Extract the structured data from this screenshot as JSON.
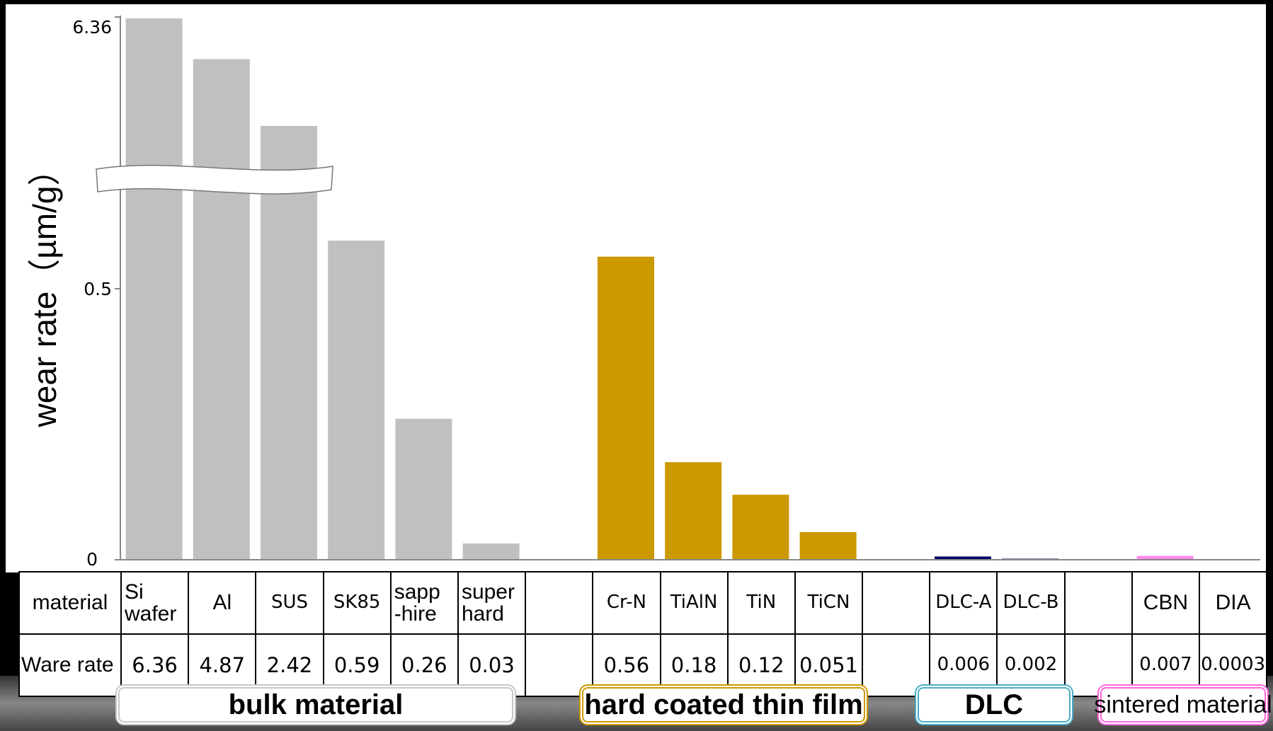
{
  "chart_data": {
    "type": "bar",
    "title": "",
    "xlabel": "",
    "ylabel": "wear rate（µm/g）",
    "y_ticks": [
      "6.36",
      "0.5",
      "0"
    ],
    "broken_axis": true,
    "grid": false,
    "row_header_material": "material",
    "row_header_rate": "Ware rate",
    "columns": [
      {
        "label": "Si wafer",
        "value": 6.36,
        "text": "6.36",
        "group": "bulk material"
      },
      {
        "label": "Al",
        "value": 4.87,
        "text": "4.87",
        "group": "bulk material"
      },
      {
        "label": "SUS",
        "value": 2.42,
        "text": "2.42",
        "group": "bulk material"
      },
      {
        "label": "SK85",
        "value": 0.59,
        "text": "0.59",
        "group": "bulk material"
      },
      {
        "label": "sapp -hire",
        "value": 0.26,
        "text": "0.26",
        "group": "bulk material"
      },
      {
        "label": "super hard",
        "value": 0.03,
        "text": "0.03",
        "group": "bulk material"
      },
      {
        "label": "",
        "value": null,
        "text": "",
        "group": ""
      },
      {
        "label": "Cr-N",
        "value": 0.56,
        "text": "0.56",
        "group": "hard coated thin film"
      },
      {
        "label": "TiAlN",
        "value": 0.18,
        "text": "0.18",
        "group": "hard coated thin film"
      },
      {
        "label": "TiN",
        "value": 0.12,
        "text": "0.12",
        "group": "hard coated thin film"
      },
      {
        "label": "TiCN",
        "value": 0.051,
        "text": "0.051",
        "group": "hard coated thin film"
      },
      {
        "label": "",
        "value": null,
        "text": "",
        "group": ""
      },
      {
        "label": "DLC-A",
        "value": 0.006,
        "text": "0.006",
        "group": "DLC"
      },
      {
        "label": "DLC-B",
        "value": 0.002,
        "text": "0.002",
        "group": "DLC"
      },
      {
        "label": "",
        "value": null,
        "text": "",
        "group": ""
      },
      {
        "label": "CBN",
        "value": 0.007,
        "text": "0.007",
        "group": "sintered material"
      },
      {
        "label": "DIA",
        "value": 0.0003,
        "text": "0.0003",
        "group": "sintered material"
      }
    ],
    "groups": [
      {
        "name": "bulk material",
        "color": "#c0c0c0",
        "border": "#c8c8c8"
      },
      {
        "name": "hard coated thin film",
        "color": "#cc9900",
        "border": "#cc9900"
      },
      {
        "name": "DLC",
        "color": "#000066",
        "border": "#4bacc6"
      },
      {
        "name": "sintered material",
        "color": "#ff88ee",
        "border": "#ff66dd"
      }
    ]
  }
}
